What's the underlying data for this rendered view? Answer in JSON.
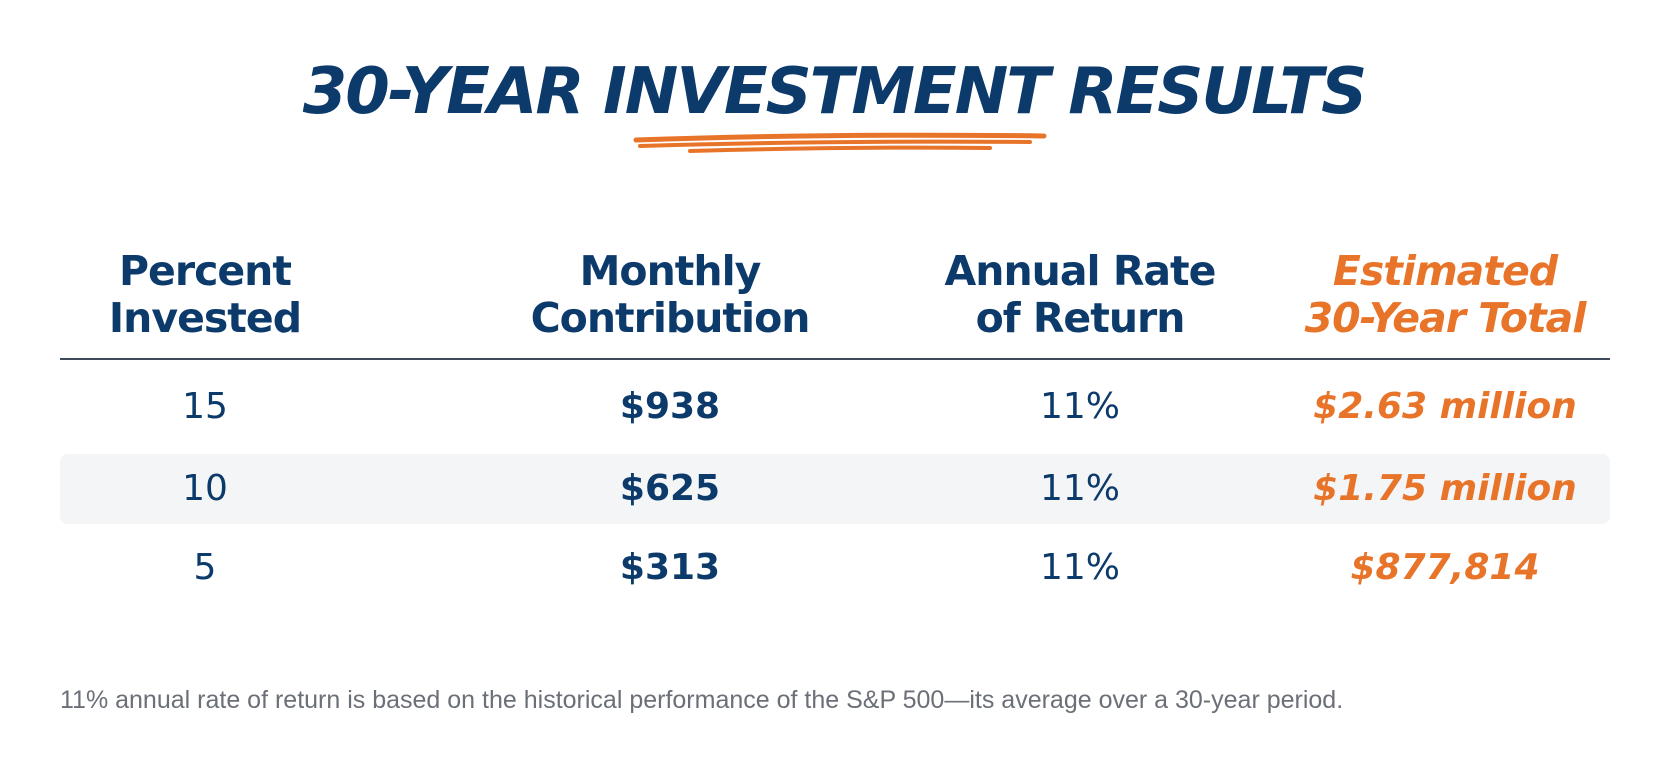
{
  "title": "30-YEAR INVESTMENT RESULTS",
  "colors": {
    "navy": "#0b3a6b",
    "accent": "#e8742a",
    "row_shade": "#f4f5f7",
    "footnote": "#6b6f77"
  },
  "chart_data": {
    "type": "table",
    "title": "30-YEAR INVESTMENT RESULTS",
    "columns": [
      {
        "line1": "Percent",
        "line2": "Invested"
      },
      {
        "line1": "Monthly",
        "line2": "Contribution"
      },
      {
        "line1": "Annual Rate",
        "line2": "of Return"
      },
      {
        "line1": "Estimated",
        "line2": "30-Year Total"
      }
    ],
    "rows": [
      {
        "percent": "15",
        "monthly": "$938",
        "rate": "11%",
        "total": "$2.63 million"
      },
      {
        "percent": "10",
        "monthly": "$625",
        "rate": "11%",
        "total": "$1.75 million"
      },
      {
        "percent": "5",
        "monthly": "$313",
        "rate": "11%",
        "total": "$877,814"
      }
    ]
  },
  "footnote": "11% annual rate of return is based on the historical performance of the S&P 500—its average over a 30-year period."
}
